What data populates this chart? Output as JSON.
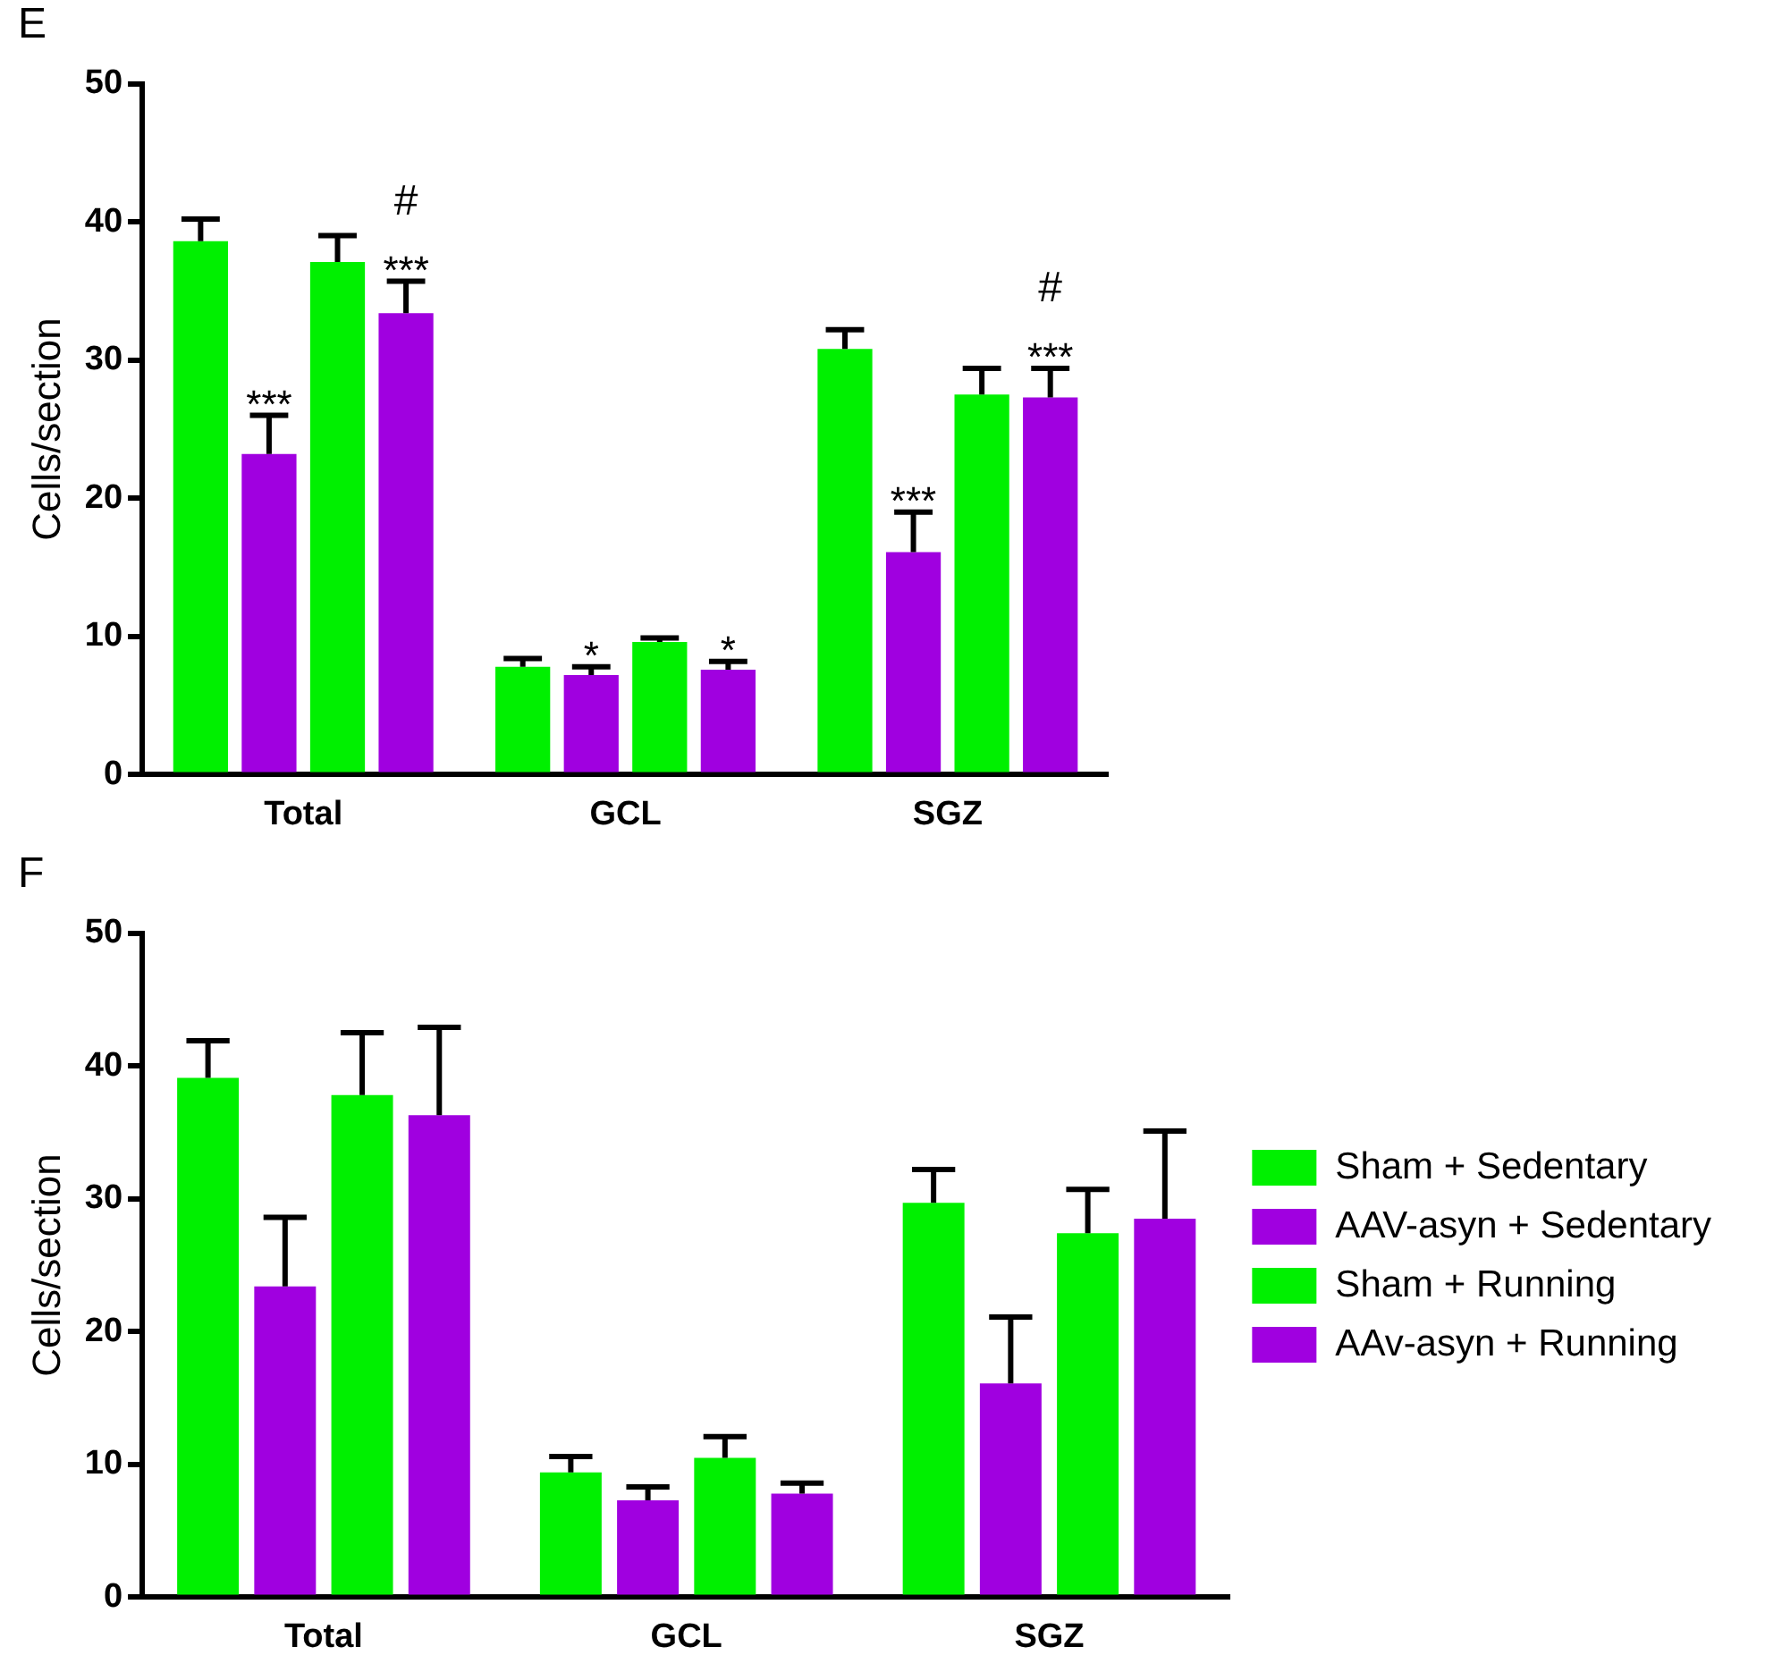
{
  "chart_data": [
    {
      "type": "bar",
      "title": "E",
      "ylabel": "Cells/section",
      "categories": [
        "Total",
        "GCL",
        "SGZ"
      ],
      "ylim": [
        0,
        50
      ],
      "yticks": [
        0,
        10,
        20,
        30,
        40,
        50
      ],
      "grid": false,
      "legend": false,
      "series": [
        {
          "color": "#00f000",
          "values": [
            38.6,
            7.8,
            30.8
          ],
          "errors": [
            [
              38.6,
              40.2
            ],
            [
              7.8,
              8.4
            ],
            [
              30.8,
              32.2
            ]
          ]
        },
        {
          "color": "#a000e0",
          "values": [
            23.2,
            7.2,
            16.1
          ],
          "errors": [
            [
              23.2,
              26.0
            ],
            [
              7.2,
              7.8
            ],
            [
              16.1,
              19.0
            ]
          ],
          "value_labels": [
            "***",
            "*",
            "***"
          ]
        },
        {
          "color": "#00f000",
          "values": [
            37.1,
            9.6,
            27.5
          ],
          "errors": [
            [
              37.1,
              39.0
            ],
            [
              9.6,
              9.9
            ],
            [
              27.5,
              29.4
            ]
          ]
        },
        {
          "color": "#a000e0",
          "values": [
            33.4,
            7.6,
            27.3
          ],
          "errors": [
            [
              33.4,
              35.7
            ],
            [
              7.6,
              8.2
            ],
            [
              27.3,
              29.4
            ]
          ],
          "value_labels": [
            "***",
            "*",
            "***"
          ]
        }
      ],
      "annotations": [
        "#",
        "#"
      ]
    },
    {
      "type": "bar",
      "title": "F",
      "ylabel": "Cells/section",
      "categories": [
        "Total",
        "GCL",
        "SGZ"
      ],
      "ylim": [
        0,
        50
      ],
      "yticks": [
        0,
        10,
        20,
        30,
        40,
        50
      ],
      "grid": false,
      "legend": "right",
      "series": [
        {
          "name": "Sham + Sedentary",
          "color": "#00f000",
          "values": [
            39.1,
            9.4,
            29.7
          ],
          "errors": [
            [
              39.1,
              41.9
            ],
            [
              9.4,
              10.6
            ],
            [
              29.7,
              32.2
            ]
          ]
        },
        {
          "name": "AAV-asyn + Sedentary",
          "color": "#a000e0",
          "values": [
            23.4,
            7.3,
            16.1
          ],
          "errors": [
            [
              23.4,
              28.6
            ],
            [
              7.3,
              8.3
            ],
            [
              16.1,
              21.1
            ]
          ]
        },
        {
          "name": "Sham + Running",
          "color": "#00f000",
          "values": [
            37.8,
            10.5,
            27.4
          ],
          "errors": [
            [
              37.8,
              42.5
            ],
            [
              10.5,
              12.1
            ],
            [
              27.4,
              30.7
            ]
          ]
        },
        {
          "name": "AAv-asyn + Running",
          "color": "#a000e0",
          "values": [
            36.3,
            7.8,
            28.5
          ],
          "errors": [
            [
              36.3,
              42.9
            ],
            [
              7.8,
              8.6
            ],
            [
              28.5,
              35.1
            ]
          ]
        }
      ]
    }
  ]
}
